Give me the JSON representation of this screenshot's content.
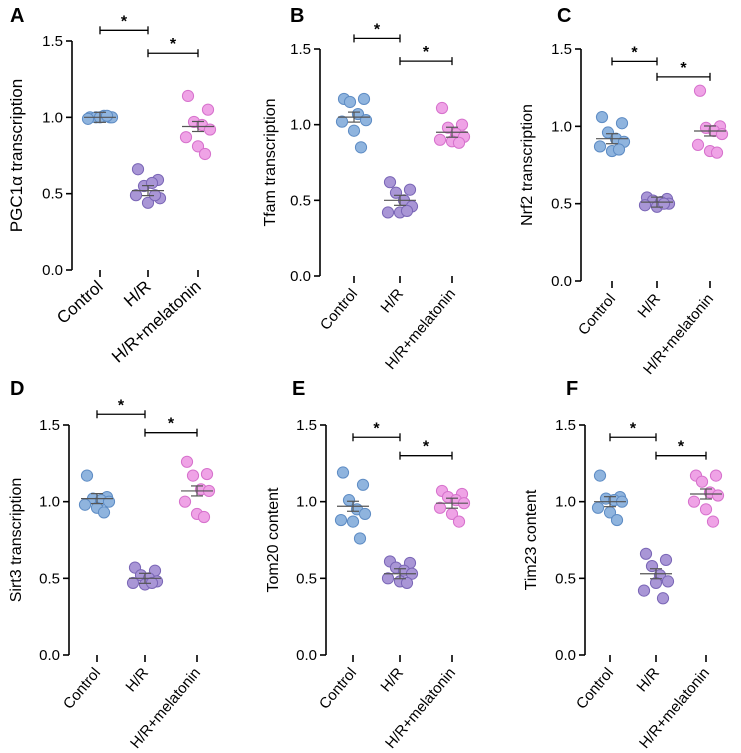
{
  "chart_data": [
    {
      "panel": "A",
      "type": "scatter",
      "ylabel": "PGC1α transcription",
      "categories": [
        "Control",
        "H/R",
        "H/R+melatonin"
      ],
      "ylim": [
        0,
        1.5
      ],
      "yticks": [
        "0.0",
        "0.5",
        "1.0",
        "1.5"
      ],
      "series": [
        {
          "values": [
            1.0,
            1.0,
            1.0,
            1.01,
            1.0,
            0.99,
            1.0,
            1.01
          ]
        },
        {
          "values": [
            0.66,
            0.59,
            0.55,
            0.57,
            0.47,
            0.49,
            0.44,
            0.49
          ]
        },
        {
          "values": [
            1.14,
            1.05,
            0.97,
            0.95,
            0.92,
            0.87,
            0.81,
            0.76
          ]
        }
      ],
      "means": [
        1.0,
        0.52,
        0.94
      ],
      "significance": [
        {
          "from": 0,
          "to": 1,
          "y": 1.57,
          "label": "*"
        },
        {
          "from": 1,
          "to": 2,
          "y": 1.42,
          "label": "*"
        }
      ]
    },
    {
      "panel": "B",
      "type": "scatter",
      "ylabel": "Tfam transcription",
      "categories": [
        "Control",
        "H/R",
        "H/R+melatonin"
      ],
      "ylim": [
        0,
        1.5
      ],
      "yticks": [
        "0.0",
        "0.5",
        "1.0",
        "1.5"
      ],
      "series": [
        {
          "values": [
            1.17,
            1.17,
            1.15,
            1.07,
            1.03,
            1.02,
            0.96,
            0.85
          ]
        },
        {
          "values": [
            0.62,
            0.57,
            0.55,
            0.5,
            0.46,
            0.42,
            0.42,
            0.43
          ]
        },
        {
          "values": [
            1.11,
            1.0,
            0.98,
            0.94,
            0.92,
            0.9,
            0.89,
            0.88
          ]
        }
      ],
      "means": [
        1.05,
        0.5,
        0.95
      ],
      "significance": [
        {
          "from": 0,
          "to": 1,
          "y": 1.57,
          "label": "*"
        },
        {
          "from": 1,
          "to": 2,
          "y": 1.42,
          "label": "*"
        }
      ]
    },
    {
      "panel": "C",
      "type": "scatter",
      "ylabel": "Nrf2 transcription",
      "categories": [
        "Control",
        "H/R",
        "H/R+melatonin"
      ],
      "ylim": [
        0,
        1.5
      ],
      "yticks": [
        "0.0",
        "0.5",
        "1.0",
        "1.5"
      ],
      "series": [
        {
          "values": [
            1.06,
            1.02,
            0.96,
            0.92,
            0.9,
            0.87,
            0.84,
            0.85
          ]
        },
        {
          "values": [
            0.54,
            0.53,
            0.52,
            0.51,
            0.5,
            0.49,
            0.48,
            0.5
          ]
        },
        {
          "values": [
            1.23,
            1.0,
            0.99,
            0.97,
            0.95,
            0.88,
            0.84,
            0.83
          ]
        }
      ],
      "means": [
        0.92,
        0.51,
        0.97
      ],
      "significance": [
        {
          "from": 0,
          "to": 1,
          "y": 1.42,
          "label": "*"
        },
        {
          "from": 1,
          "to": 2,
          "y": 1.32,
          "label": "*"
        }
      ]
    },
    {
      "panel": "D",
      "type": "scatter",
      "ylabel": "Sirt3 transcription",
      "categories": [
        "Control",
        "H/R",
        "H/R+melatonin"
      ],
      "ylim": [
        0,
        1.5
      ],
      "yticks": [
        "0.0",
        "0.5",
        "1.0",
        "1.5"
      ],
      "series": [
        {
          "values": [
            1.17,
            1.03,
            1.02,
            1.01,
            1.0,
            0.98,
            0.96,
            0.93
          ]
        },
        {
          "values": [
            0.57,
            0.55,
            0.52,
            0.5,
            0.48,
            0.47,
            0.46,
            0.47
          ]
        },
        {
          "values": [
            1.26,
            1.18,
            1.17,
            1.08,
            1.07,
            1.0,
            0.92,
            0.9
          ]
        }
      ],
      "means": [
        1.02,
        0.5,
        1.07
      ],
      "significance": [
        {
          "from": 0,
          "to": 1,
          "y": 1.57,
          "label": "*"
        },
        {
          "from": 1,
          "to": 2,
          "y": 1.45,
          "label": "*"
        }
      ]
    },
    {
      "panel": "E",
      "type": "scatter",
      "ylabel": "Tom20 content",
      "categories": [
        "Control",
        "H/R",
        "H/R+melatonin"
      ],
      "ylim": [
        0,
        1.5
      ],
      "yticks": [
        "0.0",
        "0.5",
        "1.0",
        "1.5"
      ],
      "series": [
        {
          "values": [
            1.19,
            1.11,
            1.01,
            0.95,
            0.92,
            0.88,
            0.87,
            0.76
          ]
        },
        {
          "values": [
            0.61,
            0.6,
            0.57,
            0.55,
            0.53,
            0.5,
            0.48,
            0.47
          ]
        },
        {
          "values": [
            1.07,
            1.05,
            1.03,
            1.01,
            0.99,
            0.96,
            0.92,
            0.87
          ]
        }
      ],
      "means": [
        0.97,
        0.53,
        0.99
      ],
      "significance": [
        {
          "from": 0,
          "to": 1,
          "y": 1.42,
          "label": "*"
        },
        {
          "from": 1,
          "to": 2,
          "y": 1.3,
          "label": "*"
        }
      ]
    },
    {
      "panel": "F",
      "type": "scatter",
      "ylabel": "Tim23 content",
      "categories": [
        "Control",
        "H/R",
        "H/R+melatonin"
      ],
      "ylim": [
        0,
        1.5
      ],
      "yticks": [
        "0.0",
        "0.5",
        "1.0",
        "1.5"
      ],
      "series": [
        {
          "values": [
            1.17,
            1.03,
            1.02,
            1.01,
            1.0,
            0.96,
            0.93,
            0.88
          ]
        },
        {
          "values": [
            0.66,
            0.62,
            0.58,
            0.52,
            0.48,
            0.42,
            0.47,
            0.37
          ]
        },
        {
          "values": [
            1.17,
            1.17,
            1.13,
            1.06,
            1.04,
            1.0,
            0.95,
            0.87
          ]
        }
      ],
      "means": [
        1.0,
        0.53,
        1.05
      ],
      "significance": [
        {
          "from": 0,
          "to": 1,
          "y": 1.42,
          "label": "*"
        },
        {
          "from": 1,
          "to": 2,
          "y": 1.3,
          "label": "*"
        }
      ]
    }
  ],
  "colors": {
    "control_fill": "#8FB4DE",
    "control_stroke": "#5E8CC4",
    "hr_fill": "#A996D6",
    "hr_stroke": "#7A66B6",
    "mel_fill": "#EFA3E6",
    "mel_stroke": "#D671CC"
  }
}
